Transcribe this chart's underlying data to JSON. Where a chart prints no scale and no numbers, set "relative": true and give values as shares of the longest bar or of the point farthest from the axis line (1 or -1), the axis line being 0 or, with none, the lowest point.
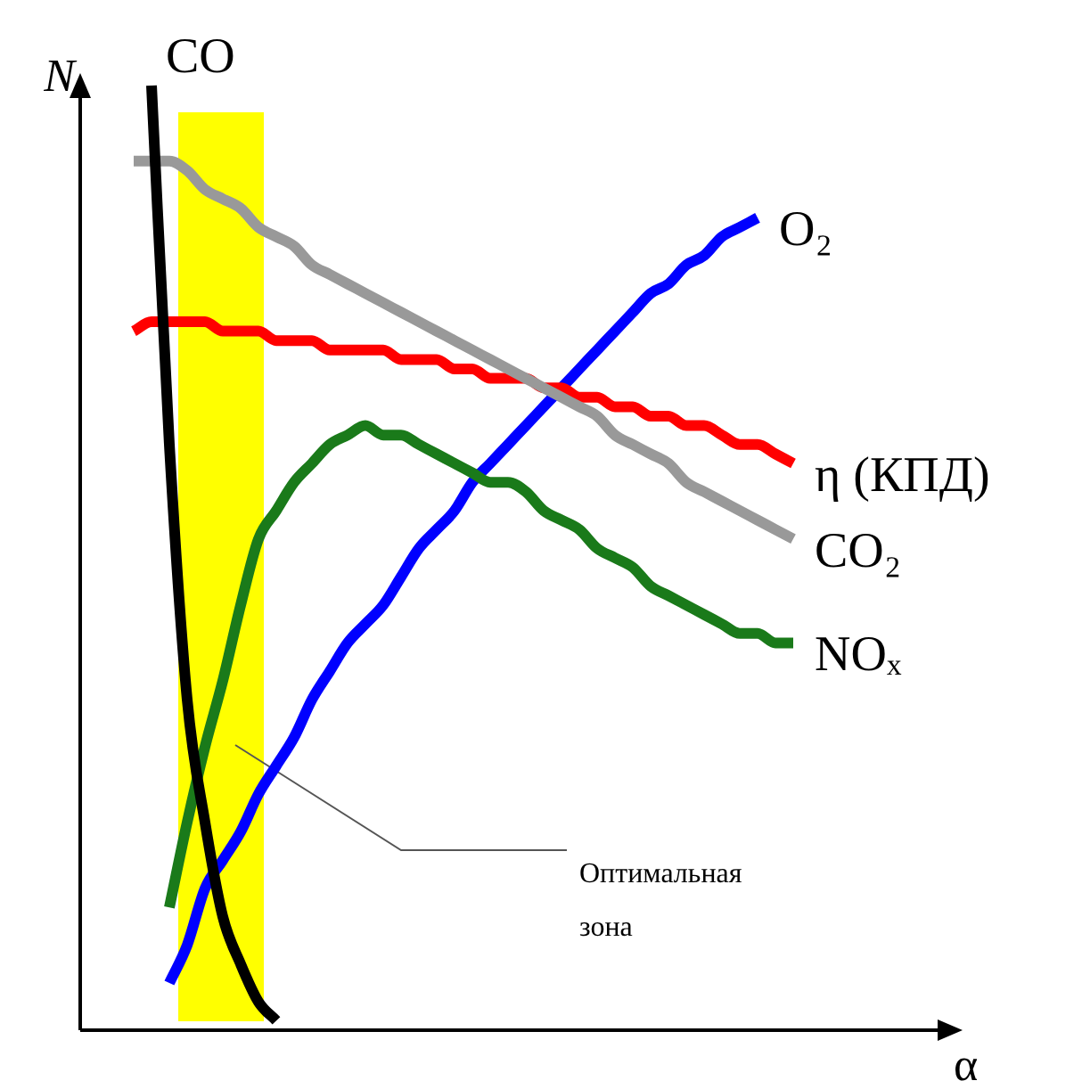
{
  "chart_data": {
    "type": "line",
    "relative": true,
    "xlabel": "α",
    "ylabel": "N",
    "categories": [
      null,
      null,
      null,
      null,
      null,
      null,
      null,
      null,
      null,
      null,
      null,
      null,
      null,
      null,
      null,
      null,
      null,
      null,
      null,
      null,
      null,
      null,
      null,
      null,
      null,
      null,
      null,
      null,
      null,
      null,
      null,
      null,
      null,
      null,
      null,
      null,
      null,
      null
    ],
    "series": [
      {
        "name": "CO",
        "color": "#000000",
        "values": [
          null,
          1.0,
          0.62,
          0.35,
          0.22,
          0.12,
          0.07,
          0.03,
          0.01,
          null,
          null,
          null,
          null,
          null,
          null,
          null,
          null,
          null,
          null,
          null,
          null,
          null,
          null,
          null,
          null,
          null,
          null,
          null,
          null,
          null,
          null,
          null,
          null,
          null,
          null,
          null,
          null,
          null
        ]
      },
      {
        "name": "CO₂",
        "color": "#999999",
        "values": [
          0.92,
          0.92,
          0.92,
          0.91,
          0.89,
          0.88,
          0.87,
          0.85,
          0.84,
          0.83,
          0.81,
          0.8,
          0.79,
          0.78,
          0.77,
          0.76,
          0.75,
          0.74,
          0.73,
          0.72,
          0.71,
          0.7,
          0.69,
          0.68,
          0.67,
          0.66,
          0.65,
          0.63,
          0.62,
          0.61,
          0.6,
          0.58,
          0.57,
          0.56,
          0.55,
          0.54,
          0.53,
          0.52
        ]
      },
      {
        "name": "η (КПД)",
        "color": "#ff0000",
        "values": [
          0.74,
          0.75,
          0.75,
          0.75,
          0.75,
          0.74,
          0.74,
          0.74,
          0.73,
          0.73,
          0.73,
          0.72,
          0.72,
          0.72,
          0.72,
          0.71,
          0.71,
          0.71,
          0.7,
          0.7,
          0.69,
          0.69,
          0.69,
          0.68,
          0.68,
          0.67,
          0.67,
          0.66,
          0.66,
          0.65,
          0.65,
          0.64,
          0.64,
          0.63,
          0.62,
          0.62,
          0.61,
          0.6
        ]
      },
      {
        "name": "NOₓ",
        "color": "#1a7a1a",
        "values": [
          null,
          null,
          0.13,
          0.22,
          0.3,
          0.37,
          0.45,
          0.52,
          0.55,
          0.58,
          0.6,
          0.62,
          0.63,
          0.64,
          0.63,
          0.63,
          0.62,
          0.61,
          0.6,
          0.59,
          0.58,
          0.58,
          0.57,
          0.55,
          0.54,
          0.53,
          0.51,
          0.5,
          0.49,
          0.47,
          0.46,
          0.45,
          0.44,
          0.43,
          0.42,
          0.42,
          0.41,
          0.41
        ]
      },
      {
        "name": "O₂",
        "color": "#0000ff",
        "values": [
          null,
          null,
          0.05,
          0.09,
          0.15,
          0.18,
          0.21,
          0.25,
          0.28,
          0.31,
          0.35,
          0.38,
          0.41,
          0.43,
          0.45,
          0.48,
          0.51,
          0.53,
          0.55,
          0.58,
          0.6,
          0.62,
          0.64,
          0.66,
          0.68,
          0.7,
          0.72,
          0.74,
          0.76,
          0.78,
          0.79,
          0.81,
          0.82,
          0.84,
          0.85,
          0.86,
          null,
          null
        ]
      }
    ],
    "annotations": [
      "Оптимальная зона"
    ]
  }
}
